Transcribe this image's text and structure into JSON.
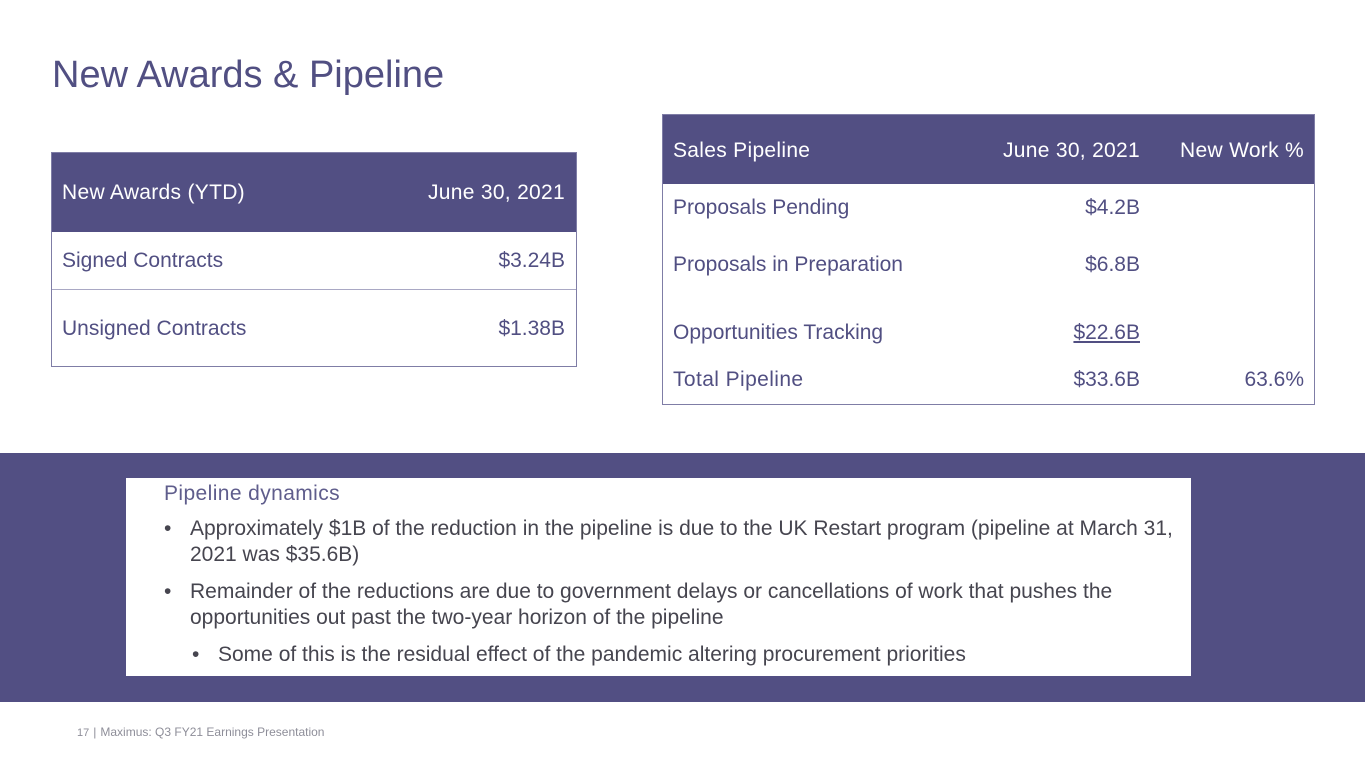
{
  "title": "New Awards & Pipeline",
  "awards_table": {
    "header": {
      "label": "New Awards (YTD)",
      "date": "June 30, 2021"
    },
    "rows": [
      {
        "label": "Signed Contracts",
        "value": "$3.24B"
      },
      {
        "label": "Unsigned Contracts",
        "value": "$1.38B"
      }
    ]
  },
  "pipeline_table": {
    "header": {
      "label": "Sales Pipeline",
      "date": "June 30, 2021",
      "new_work": "New Work %"
    },
    "rows": [
      {
        "label": "Proposals Pending",
        "value": "$4.2B",
        "new_work": ""
      },
      {
        "label": "Proposals in Preparation",
        "value": "$6.8B",
        "new_work": ""
      },
      {
        "label": "Opportunities Tracking",
        "value": "$22.6B",
        "new_work": ""
      },
      {
        "label": "Total Pipeline",
        "value": "$33.6B",
        "new_work": "63.6%"
      }
    ]
  },
  "notes": {
    "heading": "Pipeline dynamics",
    "bullets": [
      "Approximately $1B of the reduction in the pipeline is due to the UK Restart program (pipeline at March 31, 2021 was $35.6B)",
      "Remainder of the reductions are due to government delays or cancellations of work that pushes the opportunities out past the two-year horizon of the pipeline"
    ],
    "sub_bullets": [
      "Some of this is the residual effect of the pandemic altering procurement priorities"
    ]
  },
  "footer": {
    "page_number": "17",
    "separator": "|",
    "text": "Maximus: Q3 FY21 Earnings Presentation"
  },
  "colors": {
    "primary": "#524f83",
    "text_dark": "#46454f",
    "footer_gray": "#8e8e99"
  }
}
